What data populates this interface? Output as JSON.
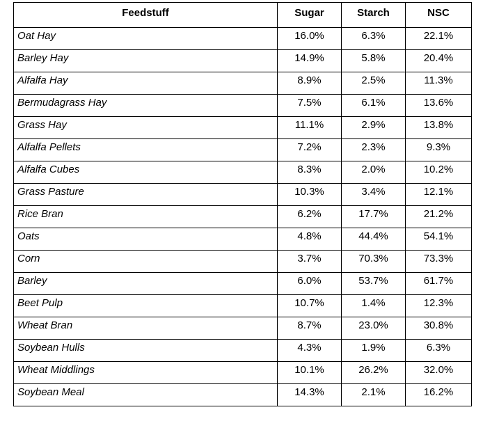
{
  "table": {
    "header": [
      "Feedstuff",
      "Sugar",
      "Starch",
      "NSC"
    ],
    "rows": [
      [
        "Oat Hay",
        "16.0%",
        "6.3%",
        "22.1%"
      ],
      [
        "Barley Hay",
        "14.9%",
        "5.8%",
        "20.4%"
      ],
      [
        "Alfalfa Hay",
        "8.9%",
        "2.5%",
        "11.3%"
      ],
      [
        "Bermudagrass Hay",
        "7.5%",
        "6.1%",
        "13.6%"
      ],
      [
        "Grass Hay",
        "11.1%",
        "2.9%",
        "13.8%"
      ],
      [
        "Alfalfa Pellets",
        "7.2%",
        "2.3%",
        "9.3%"
      ],
      [
        "Alfalfa Cubes",
        "8.3%",
        "2.0%",
        "10.2%"
      ],
      [
        "Grass Pasture",
        "10.3%",
        "3.4%",
        "12.1%"
      ],
      [
        "Rice Bran",
        "6.2%",
        "17.7%",
        "21.2%"
      ],
      [
        "Oats",
        "4.8%",
        "44.4%",
        "54.1%"
      ],
      [
        "Corn",
        "3.7%",
        "70.3%",
        "73.3%"
      ],
      [
        "Barley",
        "6.0%",
        "53.7%",
        "61.7%"
      ],
      [
        "Beet Pulp",
        "10.7%",
        "1.4%",
        "12.3%"
      ],
      [
        "Wheat Bran",
        "8.7%",
        "23.0%",
        "30.8%"
      ],
      [
        "Soybean Hulls",
        "4.3%",
        "1.9%",
        "6.3%"
      ],
      [
        "Wheat Middlings",
        "10.1%",
        "26.2%",
        "32.0%"
      ],
      [
        "Soybean Meal",
        "14.3%",
        "2.1%",
        "16.2%"
      ]
    ]
  }
}
